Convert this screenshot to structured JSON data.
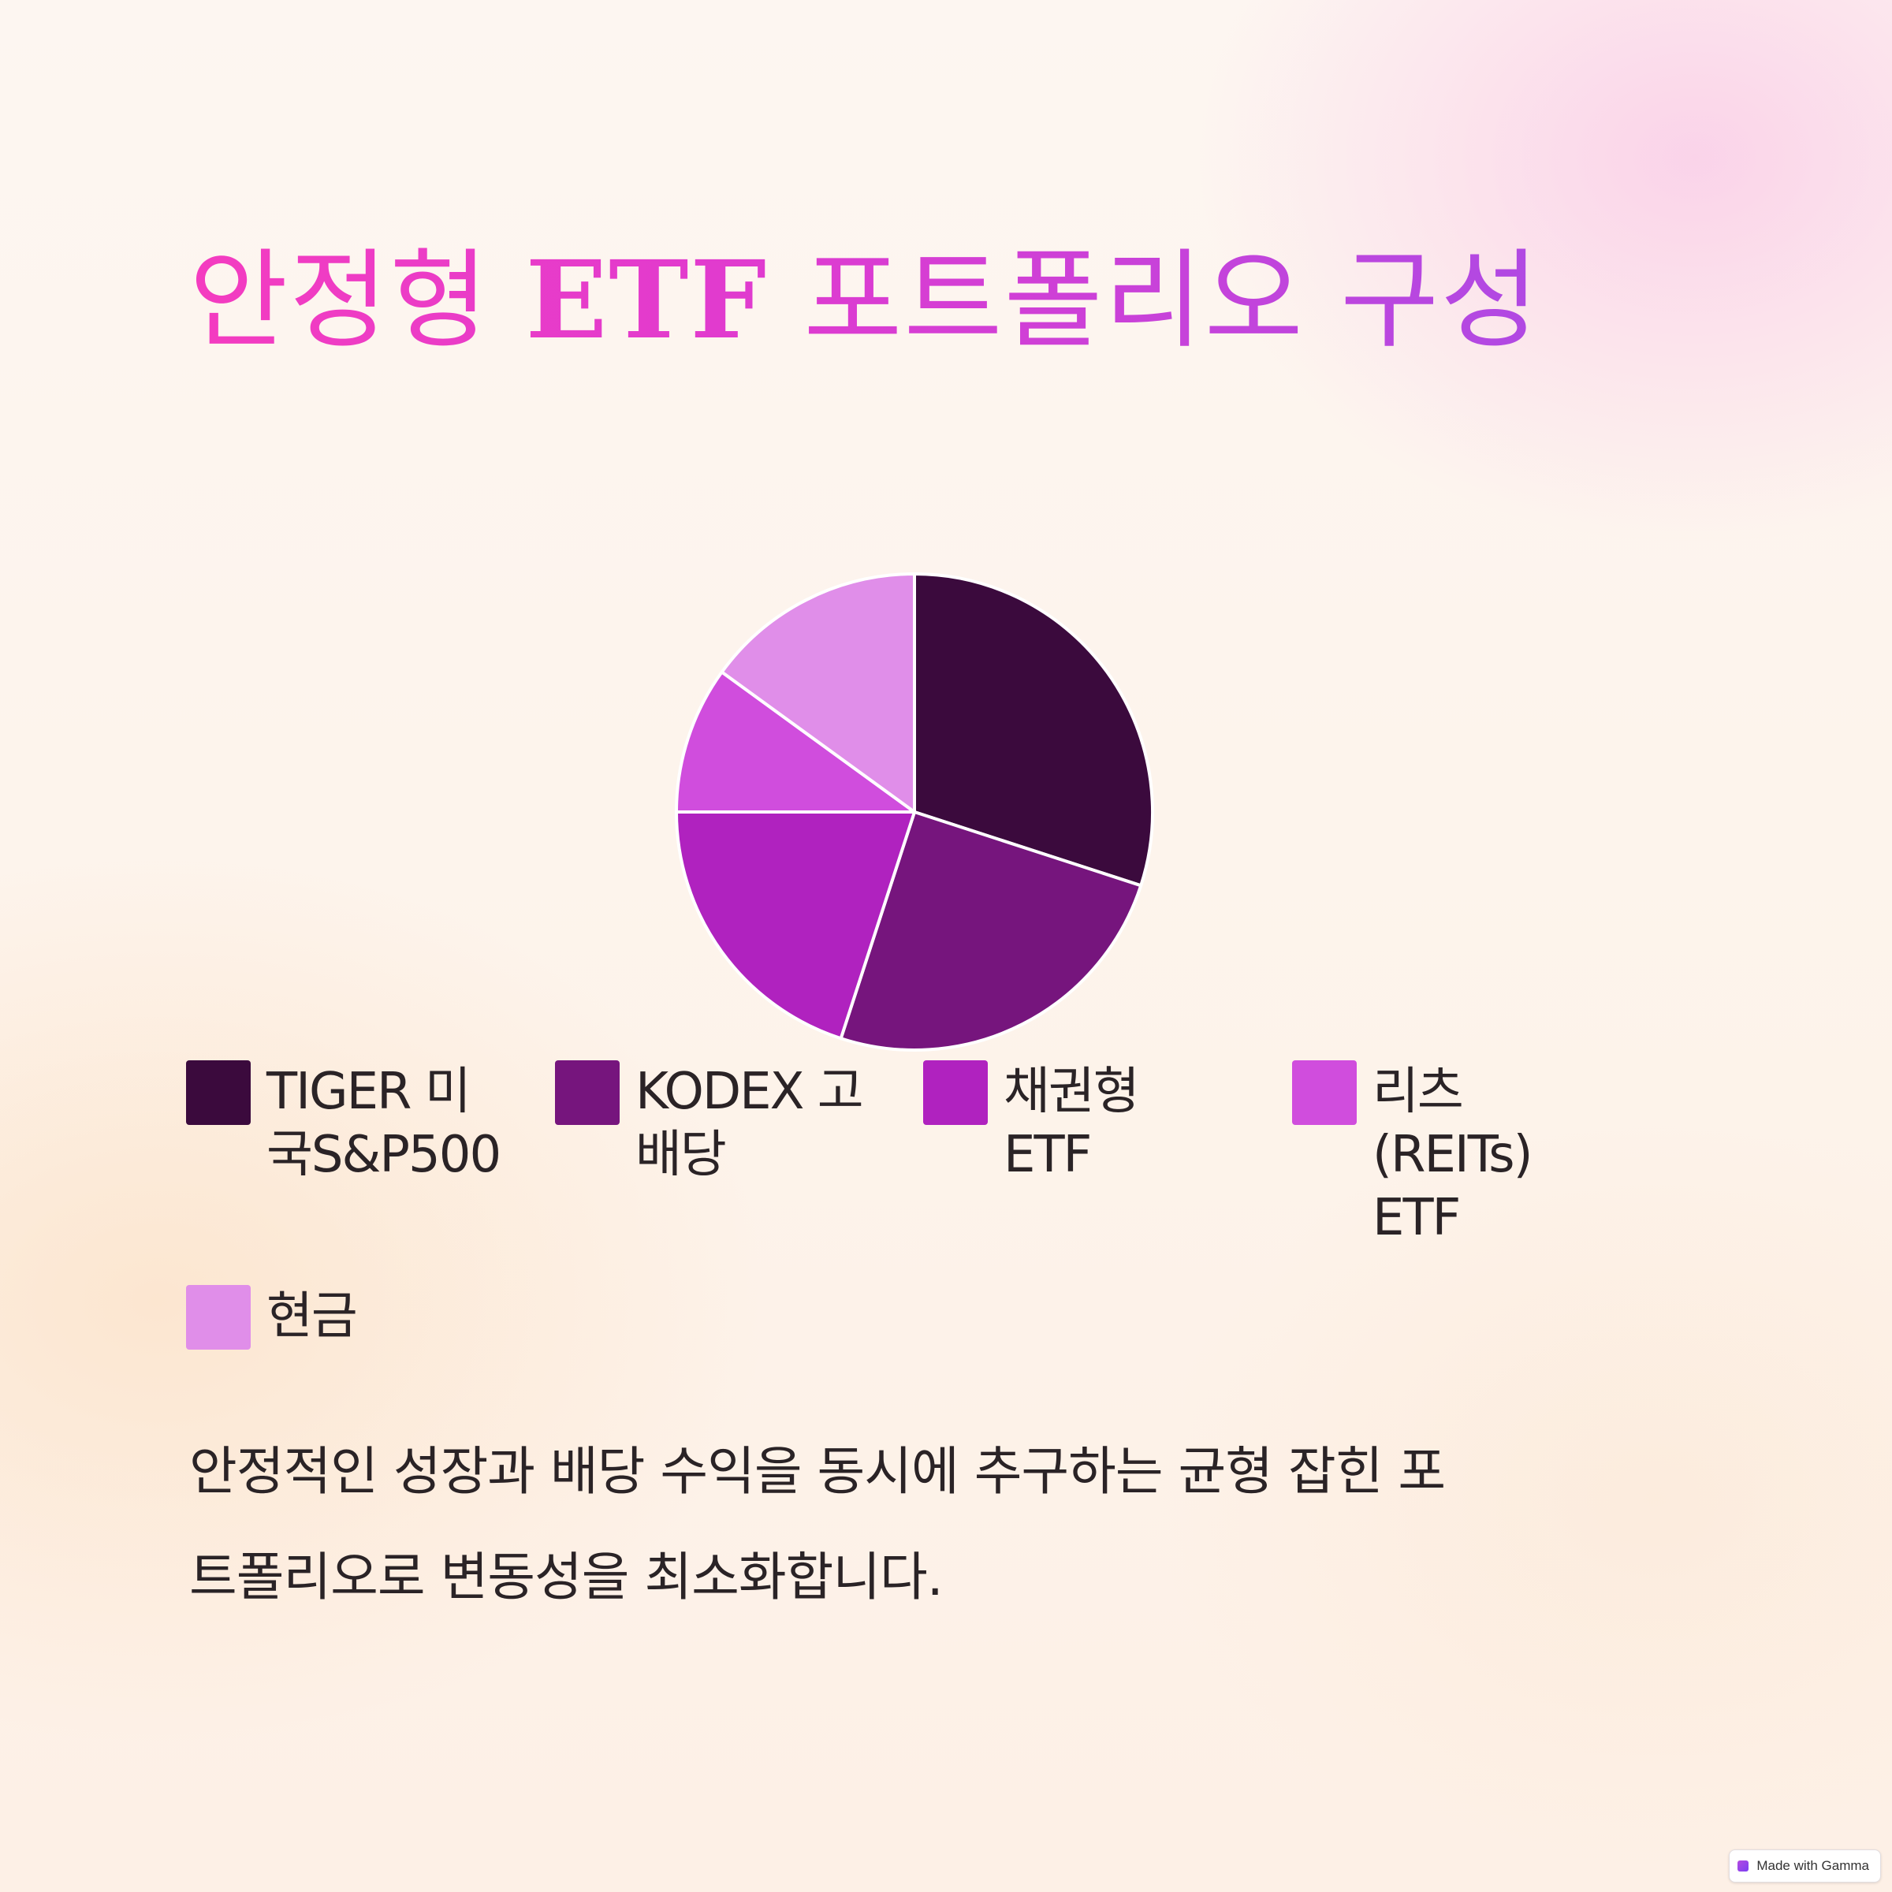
{
  "title": {
    "part1": "안정형 ",
    "part2": "ETF",
    "part3": " 포트폴리오 구성"
  },
  "chart_data": {
    "type": "pie",
    "title": "",
    "categories": [
      "TIGER 미국S&P500",
      "KODEX 고배당",
      "채권형 ETF",
      "리츠 (REITs) ETF",
      "현금"
    ],
    "values": [
      30,
      25,
      20,
      10,
      15
    ],
    "colors": [
      "#3b0a3d",
      "#76157d",
      "#b022bf",
      "#d04ddd",
      "#e08ee9"
    ],
    "legend_position": "bottom",
    "legend_lines": [
      [
        "TIGER 미",
        "국S&P500"
      ],
      [
        "KODEX 고",
        "배당"
      ],
      [
        "채권형",
        "ETF"
      ],
      [
        "리츠",
        "(REITs)",
        "ETF"
      ],
      [
        "현금"
      ]
    ]
  },
  "description": {
    "line1": "안정적인 성장과 배당 수익을 동시에 추구하는 균형 잡힌 포",
    "line2": "트폴리오로 변동성을 최소화합니다."
  },
  "badge": {
    "label": "Made with Gamma"
  }
}
